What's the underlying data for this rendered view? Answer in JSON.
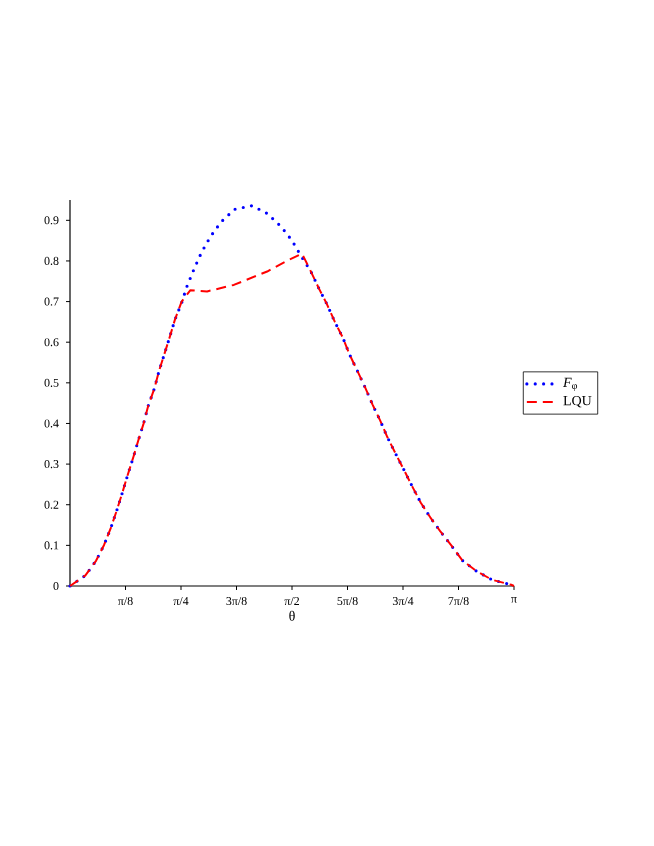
{
  "chart_data": {
    "type": "line",
    "xlabel": "θ",
    "xlim": [
      0,
      3.1416
    ],
    "ylim": [
      0,
      0.95
    ],
    "xticks": [
      {
        "value": 0.3927,
        "label": "π/8"
      },
      {
        "value": 0.7854,
        "label": "π/4"
      },
      {
        "value": 1.1781,
        "label": "3π/8"
      },
      {
        "value": 1.5708,
        "label": "π/2"
      },
      {
        "value": 1.9635,
        "label": "5π/8"
      },
      {
        "value": 2.3562,
        "label": "3π/4"
      },
      {
        "value": 2.7489,
        "label": "7π/8"
      },
      {
        "value": 3.1416,
        "label": "π"
      }
    ],
    "yticks": [
      0,
      0.1,
      0.2,
      0.3,
      0.4,
      0.5,
      0.6,
      0.7,
      0.8,
      0.9
    ],
    "legend": "right",
    "grid": false,
    "series": [
      {
        "name": "*F*$_{φ}$",
        "color": "#0000ff",
        "line_style": "dotted",
        "x": [
          0,
          0.109,
          0.184,
          0.241,
          0.289,
          0.331,
          0.369,
          0.407,
          0.449,
          0.483,
          0.52,
          0.553,
          0.596,
          0.629,
          0.667,
          0.705,
          0.742,
          0.79,
          0.828,
          0.88,
          0.932,
          0.994,
          1.069,
          1.164,
          1.287,
          1.395,
          1.495,
          1.571,
          1.637,
          1.703,
          1.76,
          1.816,
          1.874,
          1.932,
          1.979,
          2.034,
          2.089,
          2.14,
          2.195,
          2.246,
          2.305,
          2.364,
          2.423,
          2.482,
          2.549,
          2.619,
          2.702,
          2.776,
          2.878,
          2.988,
          3.122,
          3.1416
        ],
        "values": [
          0,
          0.026,
          0.062,
          0.101,
          0.143,
          0.186,
          0.228,
          0.272,
          0.318,
          0.358,
          0.399,
          0.443,
          0.485,
          0.528,
          0.57,
          0.612,
          0.655,
          0.697,
          0.738,
          0.782,
          0.822,
          0.86,
          0.896,
          0.927,
          0.936,
          0.917,
          0.884,
          0.85,
          0.811,
          0.775,
          0.733,
          0.695,
          0.65,
          0.61,
          0.569,
          0.529,
          0.488,
          0.447,
          0.407,
          0.366,
          0.325,
          0.285,
          0.244,
          0.205,
          0.169,
          0.135,
          0.098,
          0.063,
          0.036,
          0.015,
          0.003,
          0
        ]
      },
      {
        "name": "LQU",
        "color": "#ff0000",
        "line_style": "dashed",
        "x": [
          0,
          0.109,
          0.184,
          0.241,
          0.289,
          0.331,
          0.369,
          0.407,
          0.449,
          0.483,
          0.52,
          0.553,
          0.596,
          0.629,
          0.667,
          0.705,
          0.742,
          0.79,
          0.852,
          0.97,
          1.159,
          1.395,
          1.538,
          1.642,
          1.703,
          1.76,
          1.816,
          1.874,
          1.932,
          1.979,
          2.034,
          2.089,
          2.14,
          2.195,
          2.246,
          2.305,
          2.364,
          2.423,
          2.482,
          2.549,
          2.619,
          2.702,
          2.776,
          2.878,
          2.988,
          3.122,
          3.1416
        ],
        "values": [
          0,
          0.026,
          0.062,
          0.101,
          0.143,
          0.186,
          0.228,
          0.272,
          0.318,
          0.358,
          0.399,
          0.443,
          0.485,
          0.528,
          0.57,
          0.612,
          0.655,
          0.7,
          0.728,
          0.725,
          0.741,
          0.774,
          0.801,
          0.818,
          0.775,
          0.733,
          0.695,
          0.65,
          0.61,
          0.569,
          0.529,
          0.488,
          0.447,
          0.407,
          0.366,
          0.325,
          0.285,
          0.244,
          0.205,
          0.169,
          0.135,
          0.098,
          0.063,
          0.036,
          0.015,
          0.003,
          0
        ]
      }
    ]
  }
}
